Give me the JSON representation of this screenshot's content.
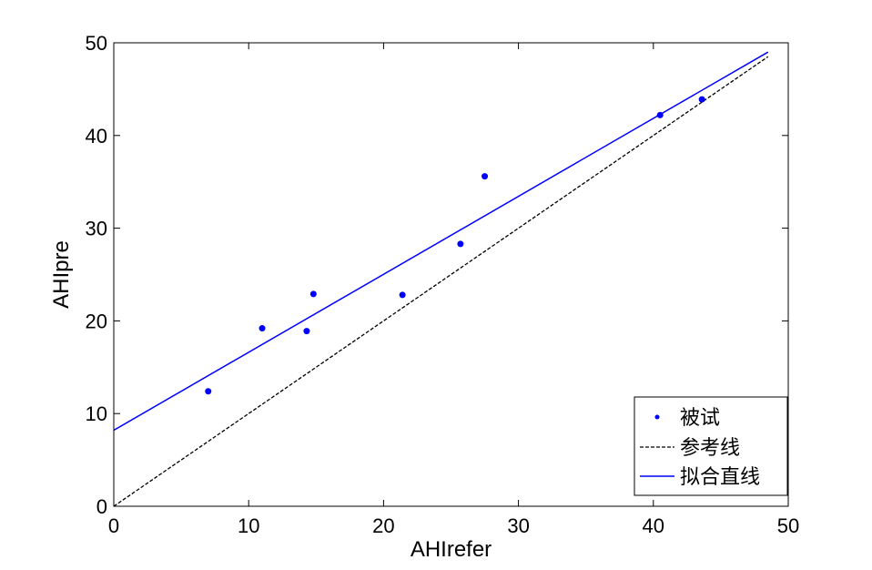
{
  "chart_data": {
    "type": "scatter",
    "xlabel": "AHIrefer",
    "ylabel": "AHIpre",
    "xlim": [
      0,
      50
    ],
    "ylim": [
      0,
      50
    ],
    "xticks": [
      "0",
      "10",
      "20",
      "30",
      "40",
      "50"
    ],
    "yticks": [
      "0",
      "10",
      "20",
      "30",
      "40",
      "50"
    ],
    "grid": false,
    "legend_position": "bottom-right",
    "series": [
      {
        "name": "被试",
        "kind": "scatter",
        "color": "#0000ff",
        "x": [
          7.0,
          11.0,
          14.3,
          14.8,
          21.4,
          25.7,
          27.5,
          40.5,
          43.6
        ],
        "y": [
          12.4,
          19.2,
          18.9,
          22.9,
          22.8,
          28.3,
          35.6,
          42.2,
          43.9
        ]
      },
      {
        "name": "参考线",
        "kind": "line",
        "style": "dashed",
        "color": "#000000",
        "x": [
          0,
          48.5
        ],
        "y": [
          0,
          48.5
        ]
      },
      {
        "name": "拟合直线",
        "kind": "line",
        "style": "solid",
        "color": "#0000ff",
        "x": [
          0,
          48.5
        ],
        "y": [
          8.2,
          49.0
        ]
      }
    ]
  }
}
